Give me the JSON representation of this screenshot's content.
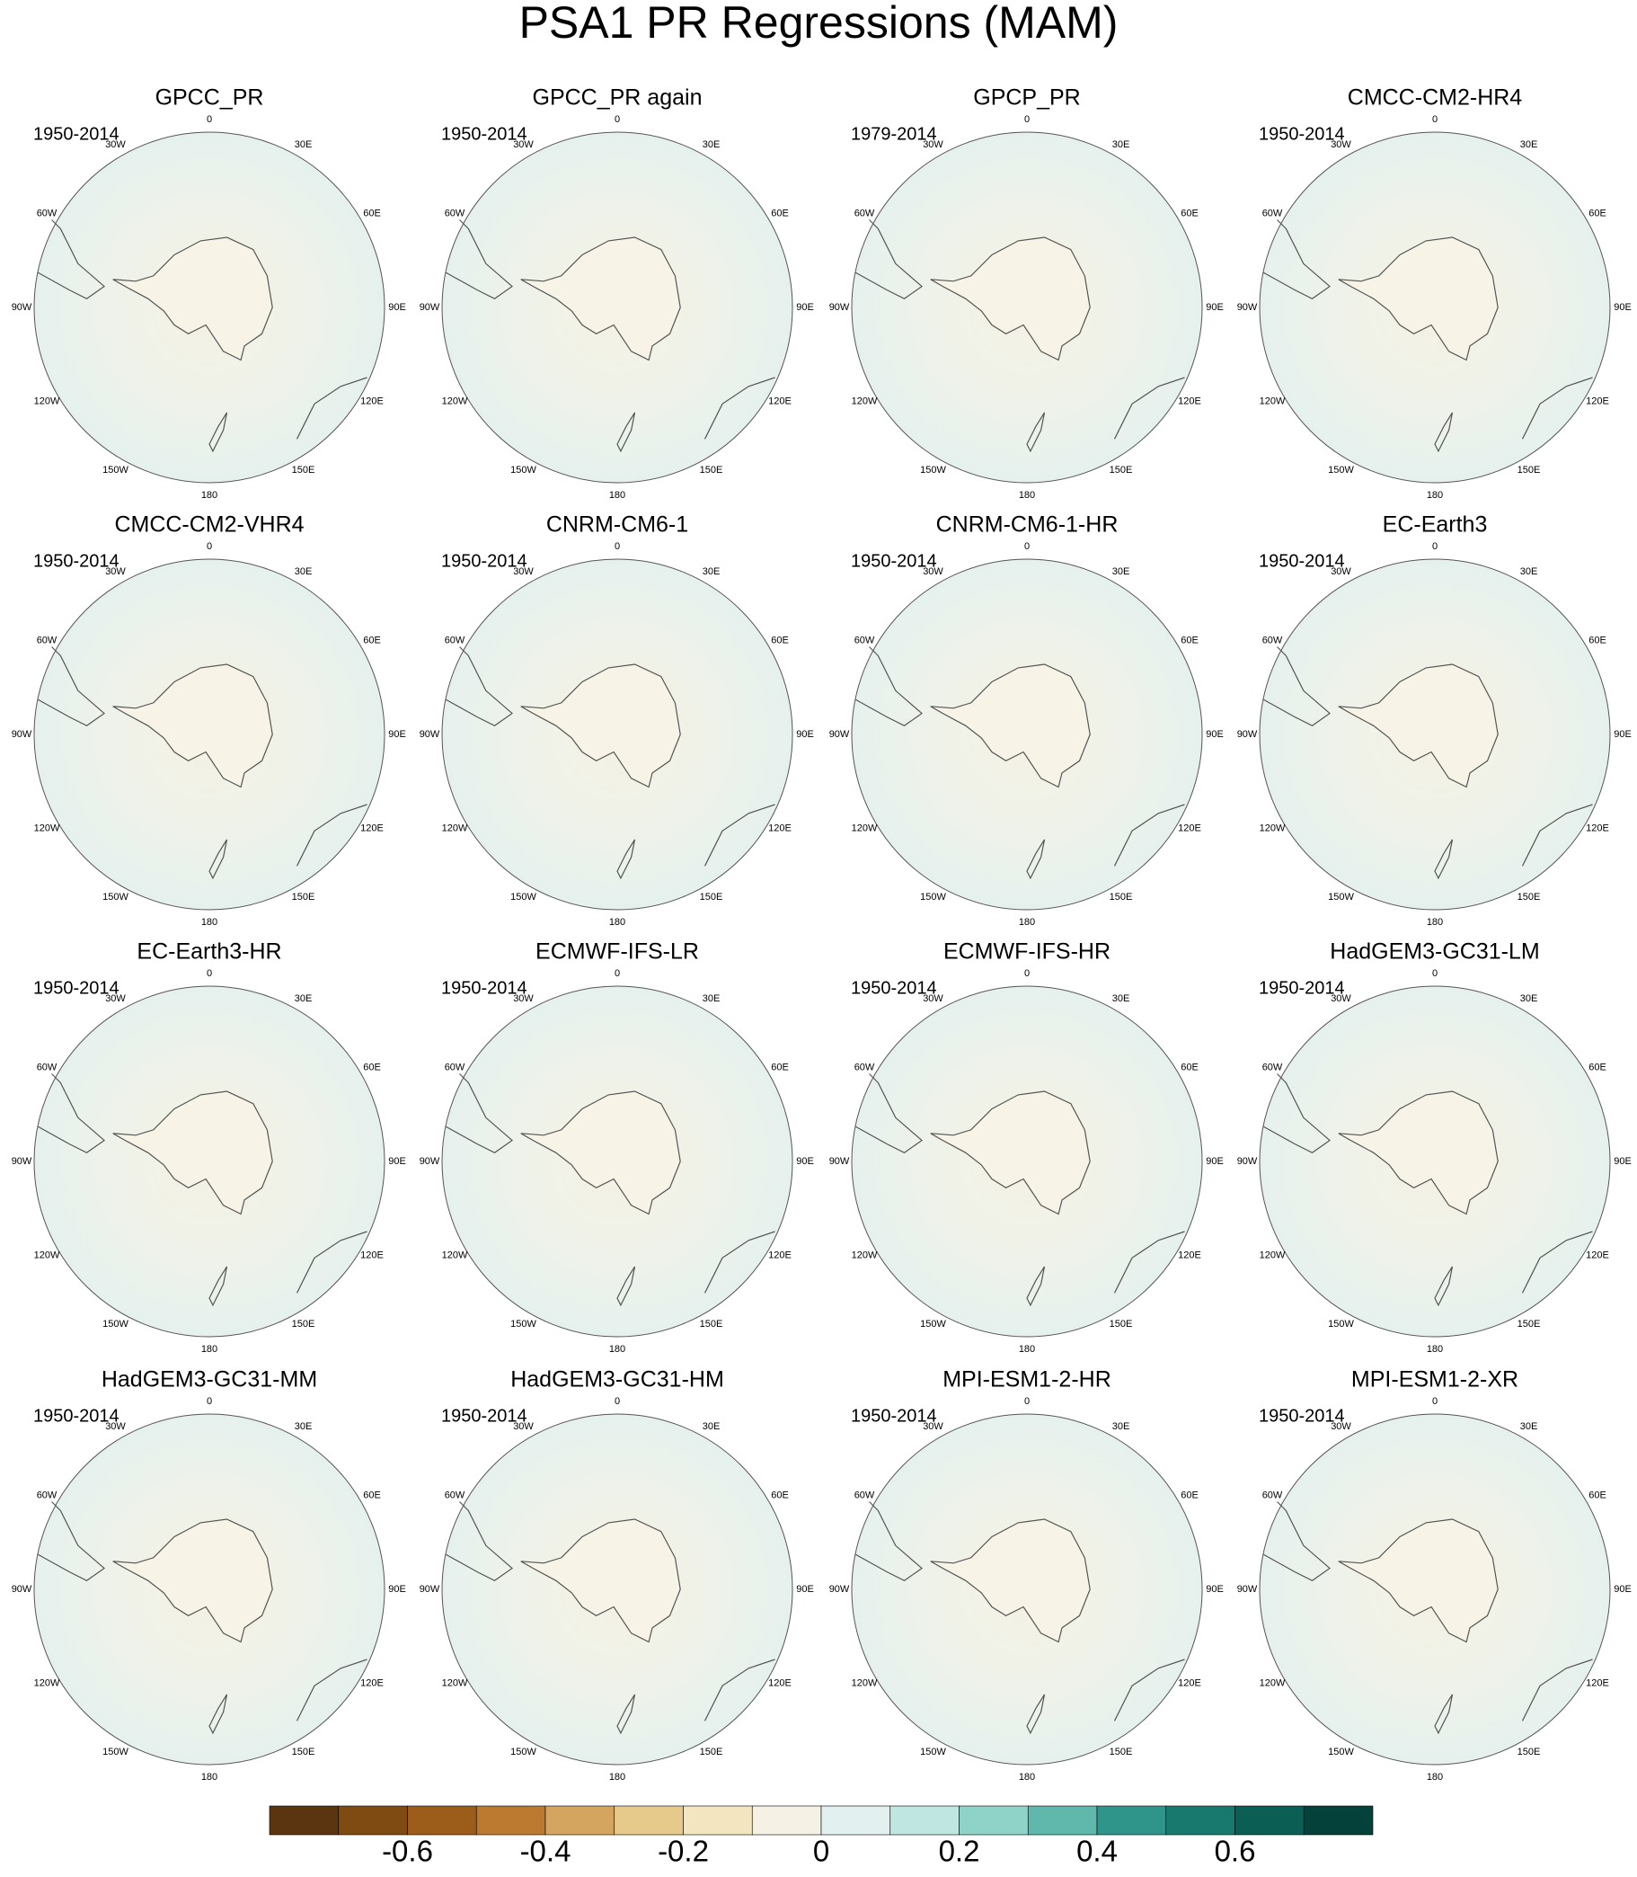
{
  "title": "PSA1 PR Regressions (MAM)",
  "panels": [
    {
      "title": "GPCC_PR",
      "period": "1950-2014"
    },
    {
      "title": "GPCC_PR again",
      "period": "1950-2014"
    },
    {
      "title": "GPCP_PR",
      "period": "1979-2014"
    },
    {
      "title": "CMCC-CM2-HR4",
      "period": "1950-2014"
    },
    {
      "title": "CMCC-CM2-VHR4",
      "period": "1950-2014"
    },
    {
      "title": "CNRM-CM6-1",
      "period": "1950-2014"
    },
    {
      "title": "CNRM-CM6-1-HR",
      "period": "1950-2014"
    },
    {
      "title": "EC-Earth3",
      "period": "1950-2014"
    },
    {
      "title": "EC-Earth3-HR",
      "period": "1950-2014"
    },
    {
      "title": "ECMWF-IFS-LR",
      "period": "1950-2014"
    },
    {
      "title": "ECMWF-IFS-HR",
      "period": "1950-2014"
    },
    {
      "title": "HadGEM3-GC31-LM",
      "period": "1950-2014"
    },
    {
      "title": "HadGEM3-GC31-MM",
      "period": "1950-2014"
    },
    {
      "title": "HadGEM3-GC31-HM",
      "period": "1950-2014"
    },
    {
      "title": "MPI-ESM1-2-HR",
      "period": "1950-2014"
    },
    {
      "title": "MPI-ESM1-2-XR",
      "period": "1950-2014"
    }
  ],
  "longitude_labels": [
    "0",
    "30E",
    "60E",
    "90E",
    "120E",
    "150E",
    "180",
    "150W",
    "120W",
    "90W",
    "60W",
    "30W"
  ],
  "colorbar": {
    "colors": [
      "#5a3510",
      "#7f4b12",
      "#9c5c1a",
      "#bc7a30",
      "#d4a55e",
      "#e6ca8c",
      "#f3e5c0",
      "#f5f1e4",
      "#e2f0ef",
      "#bfe6e0",
      "#8fd3c8",
      "#5fb8ab",
      "#2f958a",
      "#187a6f",
      "#0a5e54",
      "#03413a"
    ],
    "lim": [
      -0.8,
      0.8
    ],
    "ticks": [
      -0.6,
      -0.4,
      -0.2,
      0,
      0.2,
      0.4,
      0.6
    ]
  }
}
